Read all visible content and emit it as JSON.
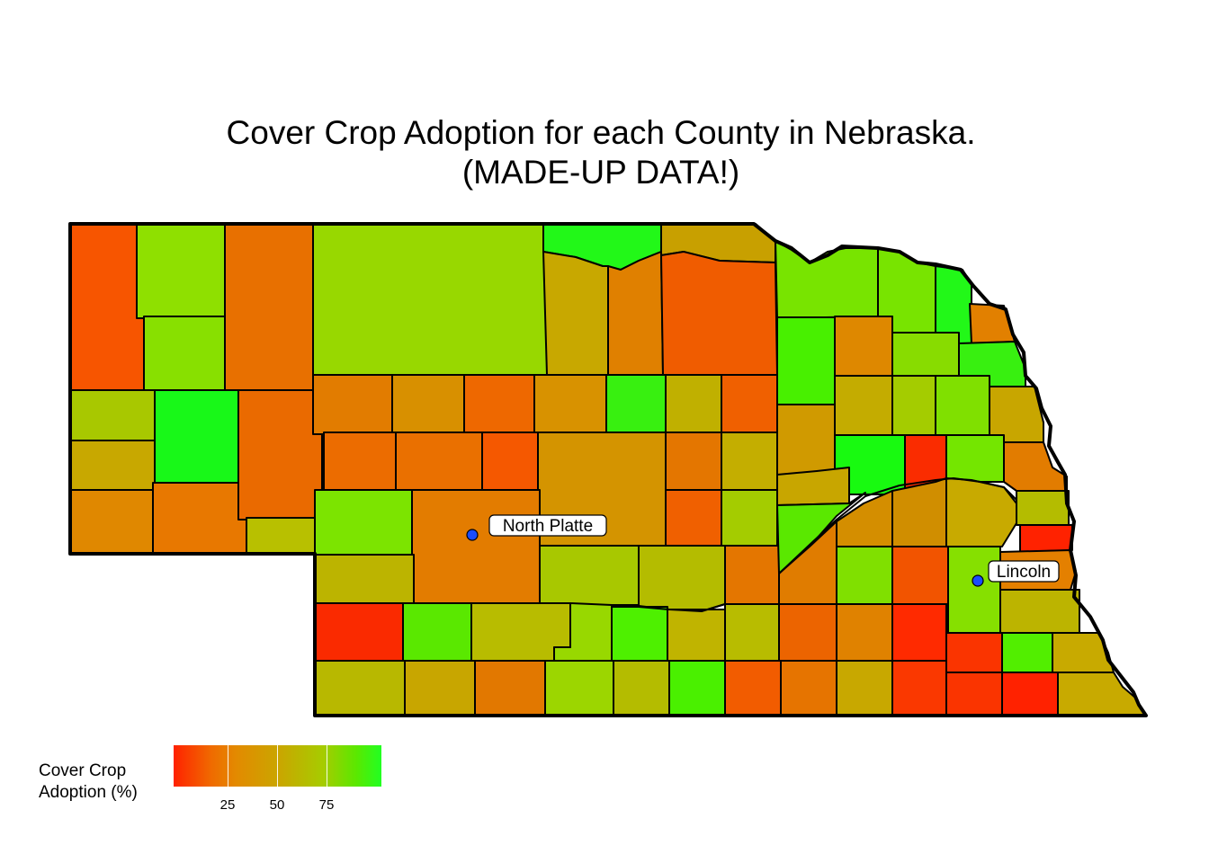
{
  "title_lines": [
    "Cover Crop Adoption for each County in Nebraska.",
    "(MADE-UP DATA!)"
  ],
  "cities": [
    {
      "name": "North Platte"
    },
    {
      "name": "Lincoln"
    }
  ],
  "legend": {
    "title_lines": [
      "Cover Crop",
      "Adoption (%)"
    ],
    "ticks": [
      "25",
      "50",
      "75"
    ],
    "colors": {
      "low": "#ff2200",
      "mid": "#c8a800",
      "high": "#22ff22"
    }
  },
  "colors": {
    "county_border": "#000000",
    "city_marker": "#1a4cff"
  }
}
